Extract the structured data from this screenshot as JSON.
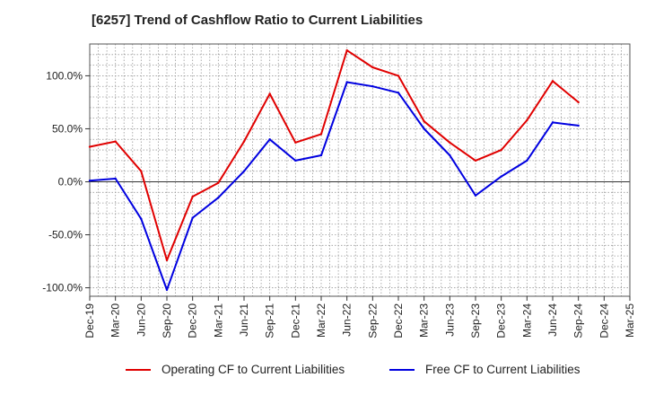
{
  "chart_data": {
    "type": "line",
    "title": "[6257]  Trend of Cashflow Ratio to Current Liabilities",
    "xlabel": "",
    "ylabel": "",
    "ylim": [
      -108,
      130
    ],
    "y_ticks": [
      100,
      50,
      0,
      -50,
      -100
    ],
    "y_tick_labels": [
      "100.0%",
      "50.0%",
      "0.0%",
      "-50.0%",
      "-100.0%"
    ],
    "x_tick_labels": [
      "Dec-19",
      "Mar-20",
      "Jun-20",
      "Sep-20",
      "Dec-20",
      "Mar-21",
      "Jun-21",
      "Sep-21",
      "Dec-21",
      "Mar-22",
      "Jun-22",
      "Sep-22",
      "Dec-22",
      "Mar-23",
      "Jun-23",
      "Sep-23",
      "Dec-23",
      "Mar-24",
      "Jun-24",
      "Sep-24",
      "Dec-24",
      "Mar-25"
    ],
    "grid": true,
    "legend_position": "bottom",
    "x": [
      "Dec-19",
      "Mar-20",
      "Jun-20",
      "Sep-20",
      "Dec-20",
      "Mar-21",
      "Jun-21",
      "Sep-21",
      "Dec-21",
      "Mar-22",
      "Jun-22",
      "Sep-22",
      "Dec-22",
      "Mar-23",
      "Jun-23",
      "Sep-23",
      "Dec-23",
      "Mar-24",
      "Jun-24",
      "Sep-24"
    ],
    "series": [
      {
        "name": "Operating CF to Current Liabilities",
        "color": "#e00000",
        "values": [
          33,
          38,
          10,
          -74,
          -14,
          -1,
          38,
          83,
          37,
          45,
          124,
          108,
          100,
          57,
          37,
          20,
          30,
          58,
          95,
          75
        ]
      },
      {
        "name": "Free CF to Current Liabilities",
        "color": "#0000e0",
        "values": [
          1,
          3,
          -35,
          -102,
          -34,
          -15,
          10,
          40,
          20,
          25,
          94,
          90,
          84,
          50,
          25,
          -13,
          5,
          20,
          56,
          53
        ]
      }
    ]
  }
}
